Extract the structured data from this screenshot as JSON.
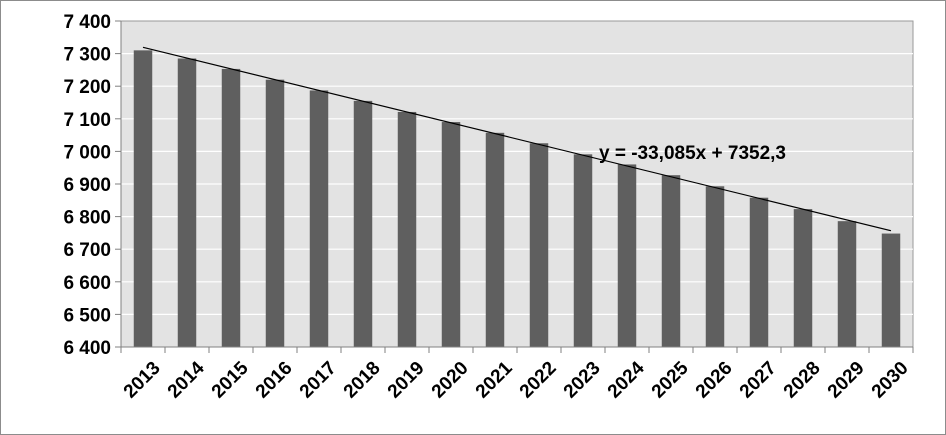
{
  "chart_data": {
    "type": "bar",
    "categories": [
      "2013",
      "2014",
      "2015",
      "2016",
      "2017",
      "2018",
      "2019",
      "2020",
      "2021",
      "2022",
      "2023",
      "2024",
      "2025",
      "2026",
      "2027",
      "2028",
      "2029",
      "2030"
    ],
    "values": [
      7310,
      7285,
      7253,
      7220,
      7187,
      7155,
      7121,
      7090,
      7057,
      7025,
      6991,
      6960,
      6927,
      6893,
      6858,
      6823,
      6786,
      6748
    ],
    "ylim": [
      6400,
      7400
    ],
    "yticks": [
      6400,
      6500,
      6600,
      6700,
      6800,
      6900,
      7000,
      7100,
      7200,
      7300,
      7400
    ],
    "ytick_labels": [
      "6 400",
      "6 500",
      "6 600",
      "6 700",
      "6 800",
      "6 900",
      "7 000",
      "7 100",
      "7 200",
      "7 300",
      "7 400"
    ],
    "grid": true,
    "trendline": {
      "type": "linear",
      "slope": -33.085,
      "intercept": 7352.3,
      "equation": "y = -33,085x + 7352,3"
    },
    "colors": {
      "bar": "#5f5f5f",
      "plot_background": "#e3e3e3",
      "gridline": "#ffffff",
      "trendline": "#000000"
    }
  }
}
